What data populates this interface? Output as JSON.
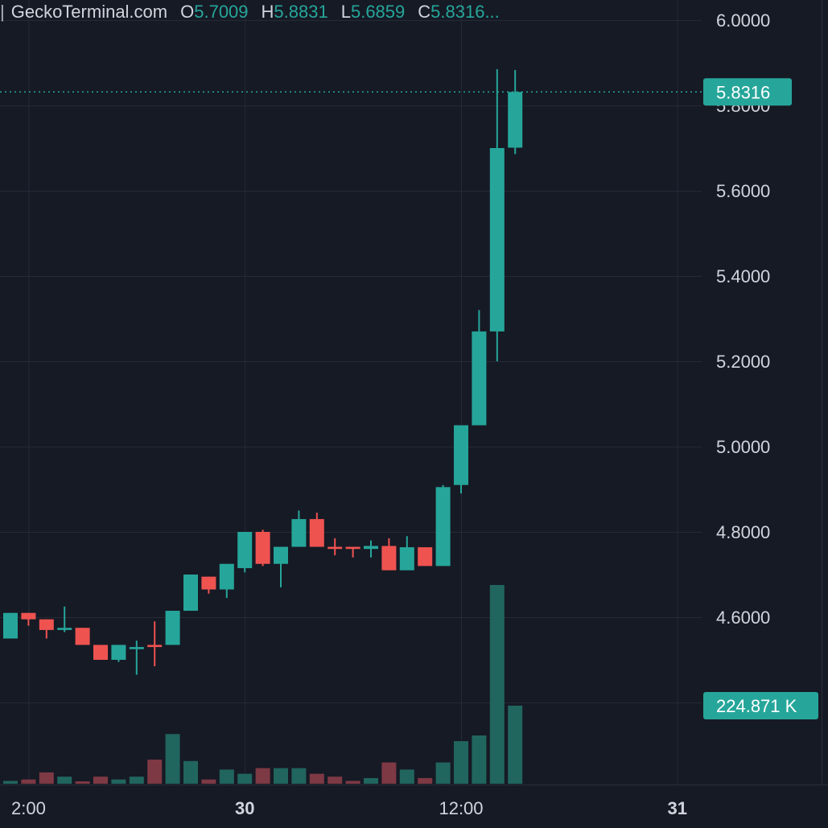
{
  "header": {
    "source": "GeckoTerminal.com",
    "open_label": "O",
    "open_value": "5.7009",
    "high_label": "H",
    "high_value": "5.8831",
    "low_label": "L",
    "low_value": "5.6859",
    "close_label": "C",
    "close_value": "5.8316..."
  },
  "chart_data": {
    "type": "candlestick",
    "y_ticks": [
      "6.0000",
      "5.8000",
      "5.6000",
      "5.4000",
      "5.2000",
      "5.0000",
      "4.8000",
      "4.6000"
    ],
    "y_range": [
      4.45,
      6.05
    ],
    "x_ticks": [
      {
        "label": "2:00",
        "slot": 1
      },
      {
        "label": "30",
        "slot": 13,
        "bold": true
      },
      {
        "label": "12:00",
        "slot": 25
      },
      {
        "label": "31",
        "slot": 37,
        "bold": true
      }
    ],
    "last_price_label": "5.8316",
    "last_price": 5.8316,
    "volume_label": "224.871 K",
    "volume_max": 0.7,
    "grid": true,
    "colors": {
      "up": "#26a69a",
      "down": "#ef5350",
      "up_volume": "#21655f",
      "down_volume": "#7d3944",
      "badge": "#26a69a"
    },
    "candles": [
      {
        "slot": 0,
        "o": 4.55,
        "h": 4.61,
        "l": 4.55,
        "c": 4.61,
        "v": 0.01
      },
      {
        "slot": 1,
        "o": 4.61,
        "h": 4.61,
        "l": 4.58,
        "c": 4.595,
        "v": 0.015
      },
      {
        "slot": 2,
        "o": 4.595,
        "h": 4.595,
        "l": 4.55,
        "c": 4.57,
        "v": 0.04
      },
      {
        "slot": 3,
        "o": 4.57,
        "h": 4.625,
        "l": 4.565,
        "c": 4.575,
        "v": 0.025
      },
      {
        "slot": 4,
        "o": 4.575,
        "h": 4.575,
        "l": 4.535,
        "c": 4.535,
        "v": 0.008
      },
      {
        "slot": 5,
        "o": 4.535,
        "h": 4.535,
        "l": 4.5,
        "c": 4.5,
        "v": 0.025
      },
      {
        "slot": 6,
        "o": 4.5,
        "h": 4.535,
        "l": 4.495,
        "c": 4.535,
        "v": 0.015
      },
      {
        "slot": 7,
        "o": 4.525,
        "h": 4.545,
        "l": 4.465,
        "c": 4.53,
        "v": 0.025
      },
      {
        "slot": 8,
        "o": 4.535,
        "h": 4.59,
        "l": 4.485,
        "c": 4.53,
        "v": 0.085
      },
      {
        "slot": 9,
        "o": 4.535,
        "h": 4.615,
        "l": 4.535,
        "c": 4.615,
        "v": 0.175
      },
      {
        "slot": 10,
        "o": 4.615,
        "h": 4.7,
        "l": 4.615,
        "c": 4.7,
        "v": 0.08
      },
      {
        "slot": 11,
        "o": 4.695,
        "h": 4.695,
        "l": 4.655,
        "c": 4.665,
        "v": 0.015
      },
      {
        "slot": 12,
        "o": 4.665,
        "h": 4.725,
        "l": 4.645,
        "c": 4.725,
        "v": 0.05
      },
      {
        "slot": 13,
        "o": 4.715,
        "h": 4.8,
        "l": 4.705,
        "c": 4.8,
        "v": 0.035
      },
      {
        "slot": 14,
        "o": 4.8,
        "h": 4.805,
        "l": 4.72,
        "c": 4.725,
        "v": 0.055
      },
      {
        "slot": 15,
        "o": 4.725,
        "h": 4.765,
        "l": 4.67,
        "c": 4.765,
        "v": 0.055
      },
      {
        "slot": 16,
        "o": 4.765,
        "h": 4.85,
        "l": 4.765,
        "c": 4.83,
        "v": 0.055
      },
      {
        "slot": 17,
        "o": 4.83,
        "h": 4.845,
        "l": 4.765,
        "c": 4.765,
        "v": 0.035
      },
      {
        "slot": 18,
        "o": 4.765,
        "h": 4.785,
        "l": 4.745,
        "c": 4.76,
        "v": 0.025
      },
      {
        "slot": 19,
        "o": 4.765,
        "h": 4.765,
        "l": 4.74,
        "c": 4.76,
        "v": 0.01
      },
      {
        "slot": 20,
        "o": 4.76,
        "h": 4.78,
        "l": 4.74,
        "c": 4.767,
        "v": 0.02
      },
      {
        "slot": 21,
        "o": 4.767,
        "h": 4.785,
        "l": 4.71,
        "c": 4.71,
        "v": 0.075
      },
      {
        "slot": 22,
        "o": 4.71,
        "h": 4.79,
        "l": 4.71,
        "c": 4.764,
        "v": 0.05
      },
      {
        "slot": 23,
        "o": 4.764,
        "h": 4.764,
        "l": 4.72,
        "c": 4.72,
        "v": 0.02
      },
      {
        "slot": 24,
        "o": 4.72,
        "h": 4.91,
        "l": 4.72,
        "c": 4.905,
        "v": 0.075
      },
      {
        "slot": 25,
        "o": 4.91,
        "h": 5.05,
        "l": 4.89,
        "c": 5.05,
        "v": 0.15
      },
      {
        "slot": 26,
        "o": 5.05,
        "h": 5.32,
        "l": 5.05,
        "c": 5.27,
        "v": 0.17
      },
      {
        "slot": 27,
        "o": 5.27,
        "h": 5.885,
        "l": 5.2,
        "c": 5.7,
        "v": 0.7
      },
      {
        "slot": 28,
        "o": 5.7009,
        "h": 5.8831,
        "l": 5.6859,
        "c": 5.8316,
        "v": 0.275
      }
    ]
  }
}
